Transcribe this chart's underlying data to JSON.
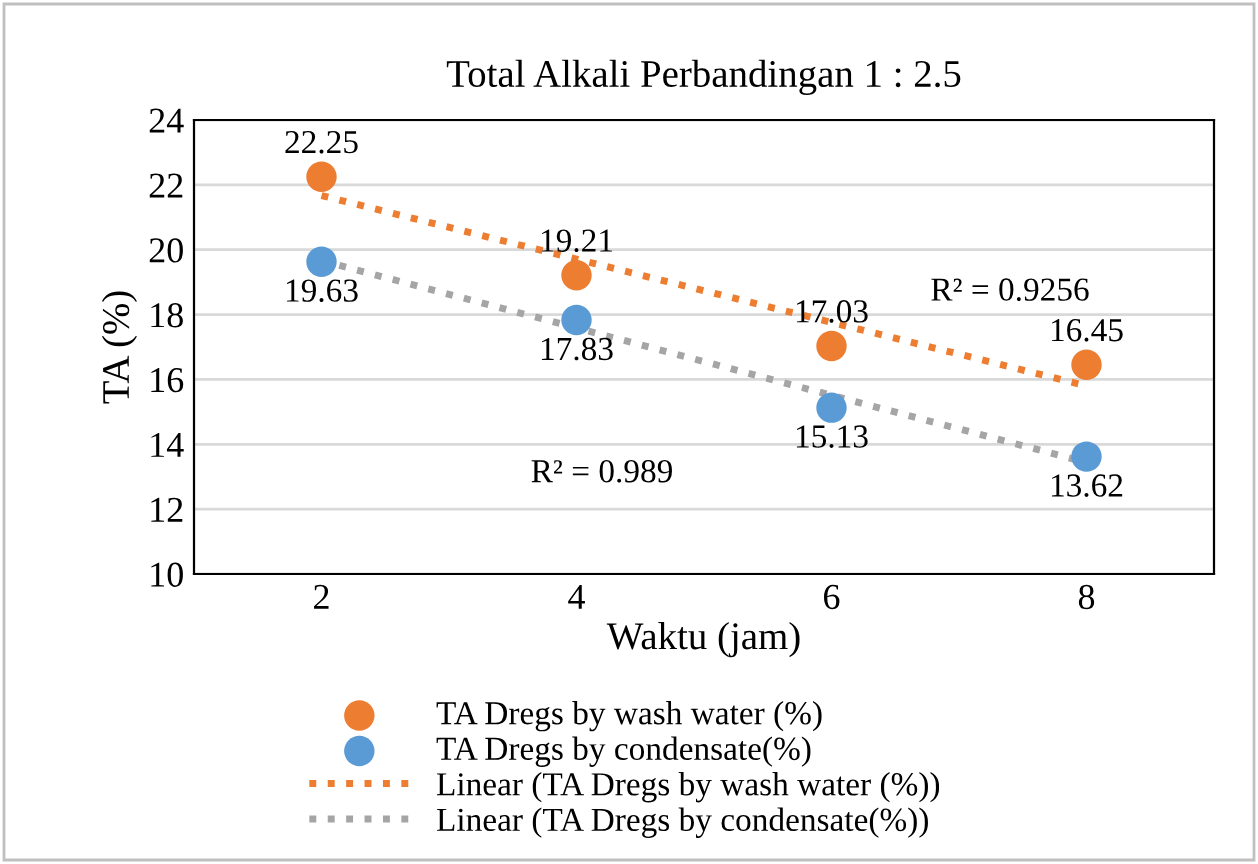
{
  "chart_data": {
    "type": "scatter",
    "title": "Total Alkali Perbandingan 1 : 2.5",
    "xlabel": "Waktu (jam)",
    "ylabel": "TA (%)",
    "x": [
      2,
      4,
      6,
      8
    ],
    "series": [
      {
        "name": "TA Dregs by wash water (%)",
        "color": "#ed7d31",
        "values": [
          22.25,
          19.21,
          17.03,
          16.45
        ],
        "value_labels": [
          "22.25",
          "19.21",
          "17.03",
          "16.45"
        ]
      },
      {
        "name": "TA Dregs by condensate(%)",
        "color": "#5b9bd5",
        "values": [
          19.63,
          17.83,
          15.13,
          13.62
        ],
        "value_labels": [
          "19.63",
          "17.83",
          "15.13",
          "13.62"
        ]
      },
      {
        "name": "Linear (TA Dregs by wash water (%))",
        "type": "line",
        "color": "#ed7d31",
        "values": [
          21.67,
          19.71,
          17.76,
          15.8
        ],
        "line_style": "dotted",
        "marker": "none"
      },
      {
        "name": "Linear (TA Dregs by condensate(%))",
        "type": "line",
        "color": "#a5a5a5",
        "values": [
          19.66,
          17.59,
          15.51,
          13.44
        ],
        "line_style": "dotted",
        "marker": "none"
      }
    ],
    "marker": "circle",
    "annotations": [
      "R² = 0.9256",
      "R² = 0.989"
    ],
    "xlim": [
      1,
      9
    ],
    "xticks": [
      2,
      4,
      6,
      8
    ],
    "ylim": [
      10,
      24
    ],
    "yticks": [
      10,
      12,
      14,
      16,
      18,
      20,
      22,
      24
    ],
    "grid": "y",
    "legend": "bottom"
  }
}
